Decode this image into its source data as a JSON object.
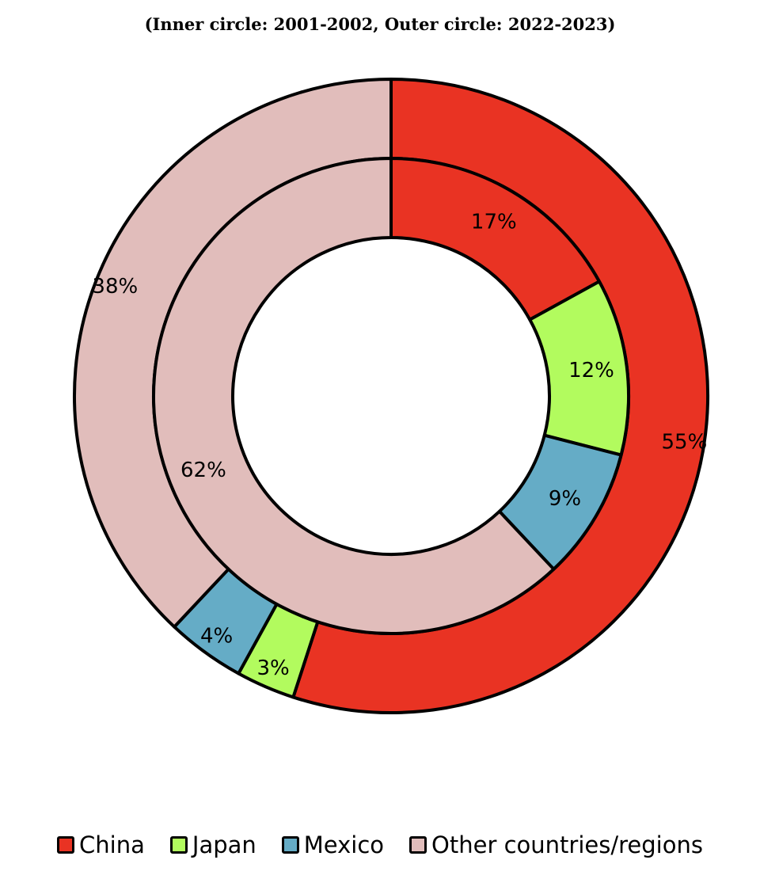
{
  "chart_data": {
    "type": "pie",
    "subtitle": "(Inner circle: 2001-2002, Outer circle: 2022-2023)",
    "categories": [
      "China",
      "Japan",
      "Mexico",
      "Other countries/regions"
    ],
    "colors": [
      "#E93323",
      "#B2FB5E",
      "#65ACC6",
      "#E1BDBB"
    ],
    "series": [
      {
        "ring": "inner",
        "period": "2001-2002",
        "values": [
          17,
          12,
          9,
          62
        ],
        "labels": [
          "17%",
          "12%",
          "9%",
          "62%"
        ]
      },
      {
        "ring": "outer",
        "period": "2022-2023",
        "values": [
          55,
          3,
          4,
          38
        ],
        "labels": [
          "55%",
          "3%",
          "4%",
          "38%"
        ]
      }
    ],
    "legend_position": "bottom"
  }
}
